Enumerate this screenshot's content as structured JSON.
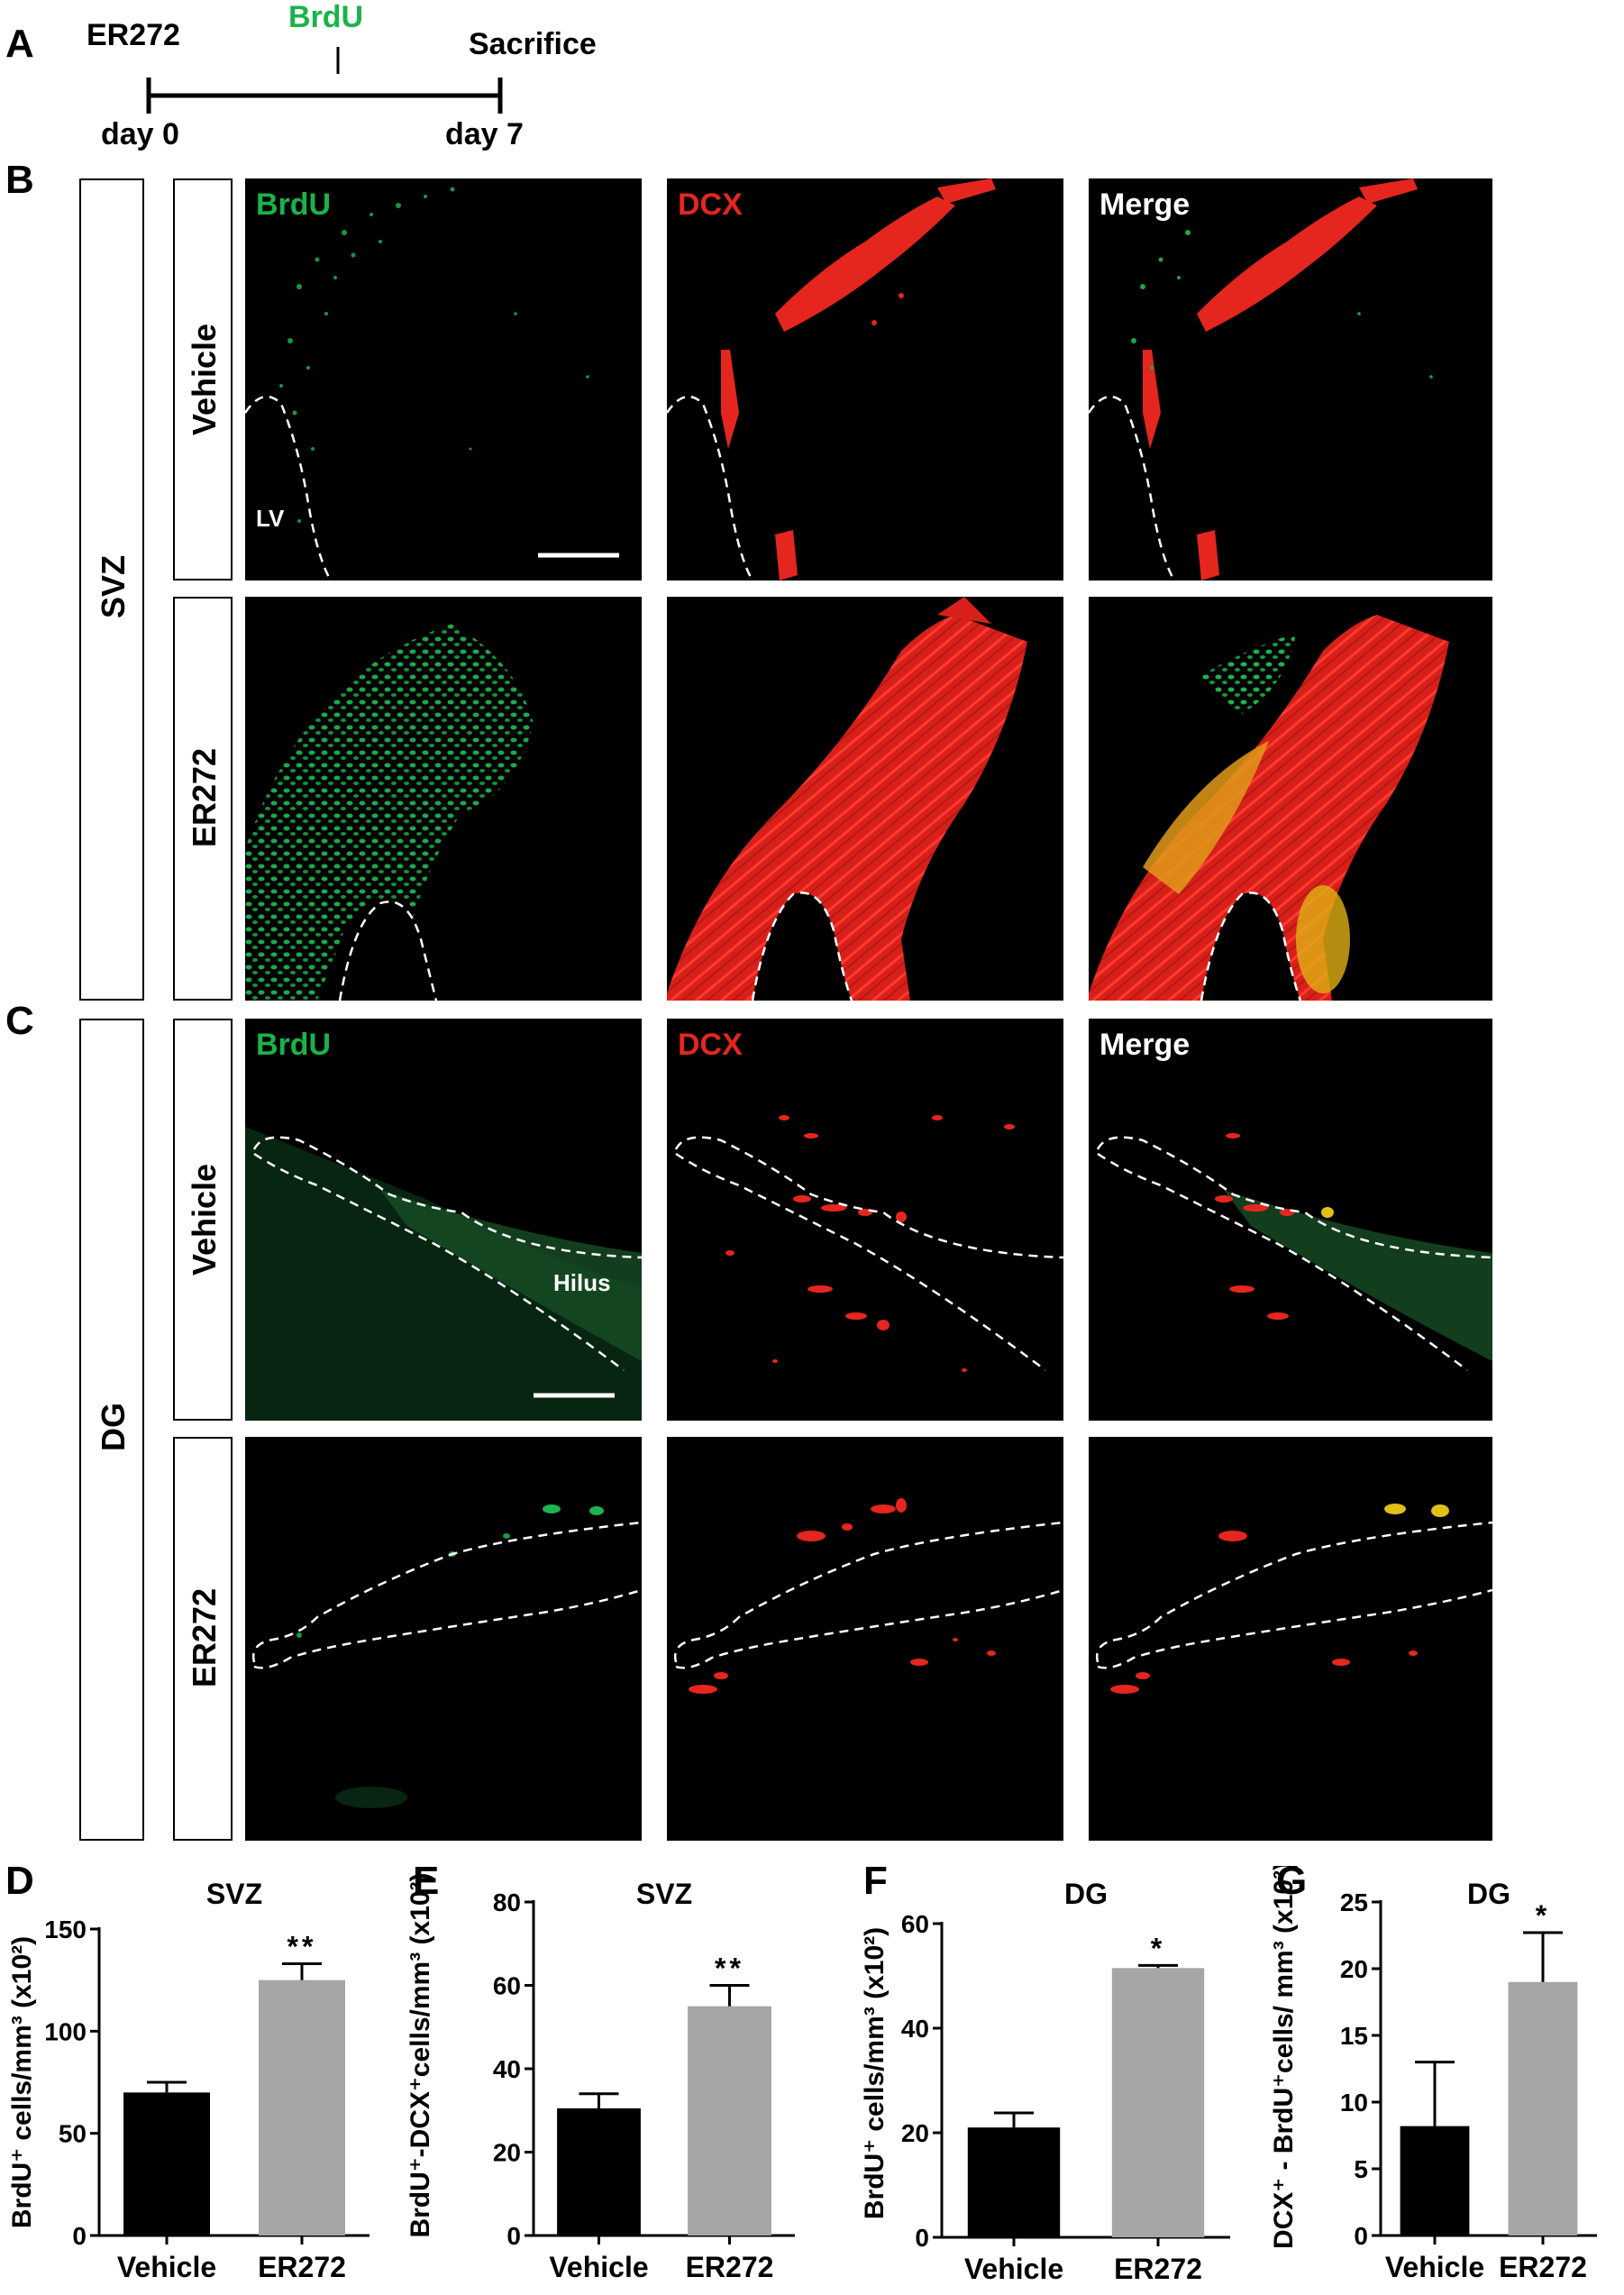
{
  "panel_letters": {
    "a": "A",
    "b": "B",
    "c": "C",
    "d": "D",
    "e": "E",
    "f": "F",
    "g": "G"
  },
  "timeline": {
    "start_label": "ER272",
    "mid_label": "BrdU",
    "end_label": "Sacrifice",
    "day_start": "day 0",
    "day_end": "day 7"
  },
  "colors": {
    "brdu": "#19b34a",
    "dcx": "#e5261e",
    "merge": "#ffffff",
    "vehicle_bar": "#000000",
    "er272_bar": "#a6a6a8"
  },
  "micrographs": {
    "columns": [
      "BrdU",
      "DCX",
      "Merge"
    ],
    "region_svz": "SVZ",
    "region_dg": "DG",
    "rows": [
      "Vehicle",
      "ER272"
    ],
    "lv_label": "LV",
    "hilus_label": "Hilus"
  },
  "chart_data": [
    {
      "type": "bar",
      "title": "SVZ",
      "ylabel": "BrdU⁺ cells/mm³ (x10²)",
      "categories": [
        "Vehicle",
        "ER272"
      ],
      "values": [
        70,
        125
      ],
      "errors": [
        5,
        8
      ],
      "ylim": [
        0,
        150
      ],
      "yticks": [
        0,
        50,
        100,
        150
      ],
      "significance": [
        "",
        "**"
      ]
    },
    {
      "type": "bar",
      "title": "SVZ",
      "ylabel": "BrdU⁺-DCX⁺cells/mm³ (x10²)",
      "categories": [
        "Vehicle",
        "ER272"
      ],
      "values": [
        30.5,
        55
      ],
      "errors": [
        3.5,
        5
      ],
      "ylim": [
        0,
        80
      ],
      "yticks": [
        0,
        20,
        40,
        60,
        80
      ],
      "significance": [
        "",
        "**"
      ]
    },
    {
      "type": "bar",
      "title": "DG",
      "ylabel": "BrdU⁺ cells/mm³ (x10²)",
      "categories": [
        "Vehicle",
        "ER272"
      ],
      "values": [
        21,
        51.5
      ],
      "errors": [
        2.8,
        0.5
      ],
      "ylim": [
        0,
        60
      ],
      "yticks": [
        0,
        20,
        40,
        60
      ],
      "significance": [
        "",
        "*"
      ]
    },
    {
      "type": "bar",
      "title": "DG",
      "ylabel": "DCX⁺ - BrdU⁺cells/ mm³ (x10²)",
      "categories": [
        "Vehicle",
        "ER272"
      ],
      "values": [
        8.2,
        19
      ],
      "errors": [
        4.8,
        3.7
      ],
      "ylim": [
        0,
        25
      ],
      "yticks": [
        0,
        5,
        10,
        15,
        20,
        25
      ],
      "significance": [
        "",
        "*"
      ]
    }
  ]
}
